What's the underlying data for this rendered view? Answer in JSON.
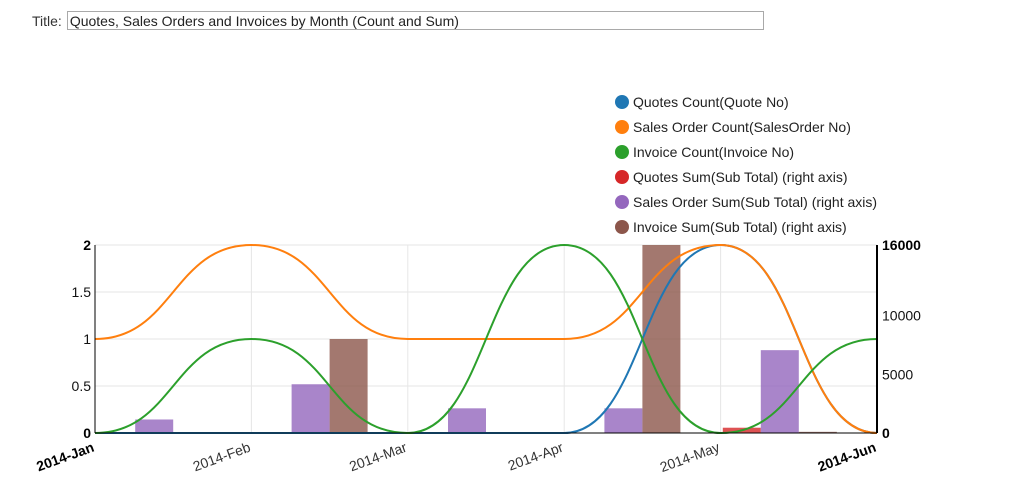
{
  "title_field": {
    "label": "Title:",
    "value": "Quotes, Sales Orders and Invoices by Month (Count and Sum)"
  },
  "chart_data": {
    "type": "bar+line",
    "title": "Quotes, Sales Orders and Invoices by Month (Count and Sum)",
    "categories": [
      "2014-Jan",
      "2014-Feb",
      "2014-Mar",
      "2014-Apr",
      "2014-May",
      "2014-Jun"
    ],
    "left_axis": {
      "ylim": [
        0,
        2
      ],
      "ticks": [
        0,
        0.5,
        1,
        1.5,
        2
      ]
    },
    "right_axis": {
      "ylim": [
        0,
        16000
      ],
      "ticks": [
        0,
        5000,
        10000,
        16000
      ]
    },
    "grid": true,
    "legend_placement": "top-right",
    "series": [
      {
        "name": "Quotes Count(Quote No)",
        "type": "line",
        "axis": "left",
        "color": "#1f77b4",
        "values": [
          0,
          0,
          0,
          0,
          2,
          0
        ]
      },
      {
        "name": "Sales Order Count(SalesOrder No)",
        "type": "line",
        "axis": "left",
        "color": "#ff7f0e",
        "values": [
          1,
          2,
          1,
          1,
          2,
          0
        ]
      },
      {
        "name": "Invoice Count(Invoice No)",
        "type": "line",
        "axis": "left",
        "color": "#2ca02c",
        "values": [
          0,
          1,
          0,
          2,
          0,
          1
        ]
      },
      {
        "name": "Quotes Sum(Sub Total) (right axis)",
        "type": "bar",
        "axis": "right",
        "color": "#d62728",
        "values": [
          0,
          0,
          0,
          0,
          450,
          0
        ]
      },
      {
        "name": "Sales Order Sum(Sub Total) (right axis)",
        "type": "bar",
        "axis": "right",
        "color": "#9467bd",
        "values": [
          1150,
          4150,
          2100,
          2100,
          7050,
          0
        ]
      },
      {
        "name": "Invoice Sum(Sub Total) (right axis)",
        "type": "bar",
        "axis": "right",
        "color": "#8c564b",
        "values": [
          0,
          8000,
          0,
          16000,
          100,
          100
        ]
      }
    ]
  }
}
